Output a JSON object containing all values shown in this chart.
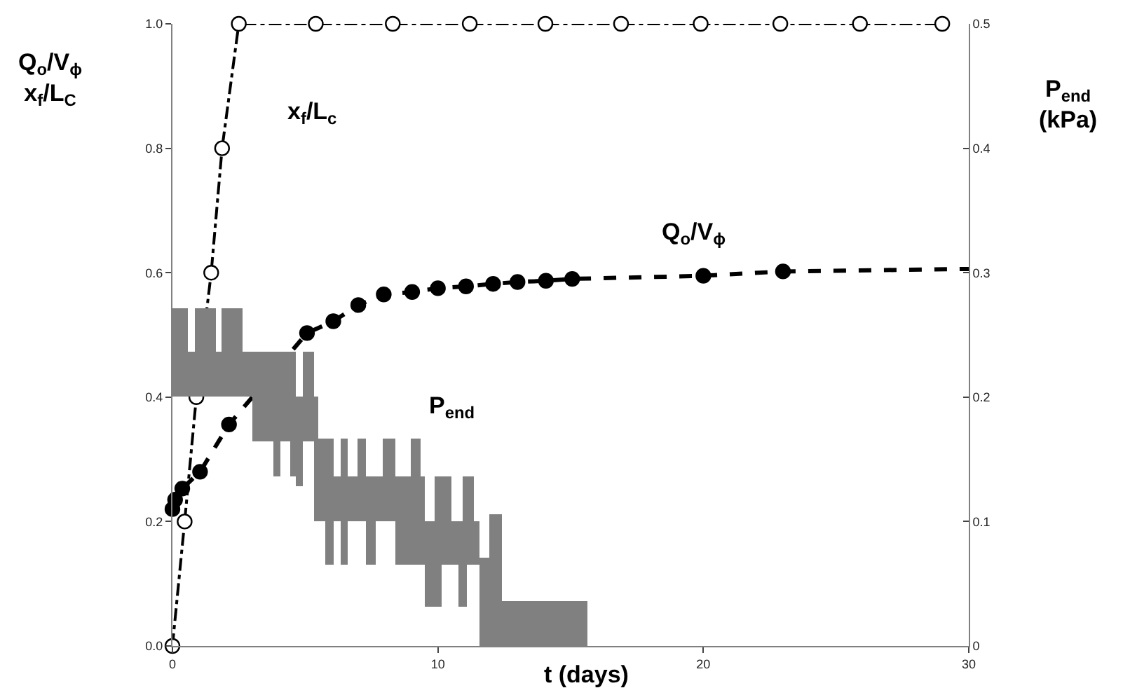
{
  "chart_data": {
    "type": "line",
    "xlabel": "t (days)",
    "ylabel": "Q$_{o}$/V$_{ϕ}$\nx$_{f}$/L$_{C}$",
    "y2label": "P$_{end}$\n(kPa)",
    "xlim": [
      0,
      30
    ],
    "xticks": [
      0,
      10,
      20,
      30
    ],
    "ylim": [
      0,
      1
    ],
    "yticks": [
      {
        "value": 0,
        "label": "0.0"
      },
      {
        "value": 0.2,
        "label": "0.2"
      },
      {
        "value": 0.4,
        "label": "0.4"
      },
      {
        "value": 0.6,
        "label": "0.6"
      },
      {
        "value": 0.8,
        "label": "0.8"
      },
      {
        "value": 1,
        "label": "1.0"
      }
    ],
    "y2lim": [
      0,
      0.5
    ],
    "y2ticks": [
      0,
      0.1,
      0.2,
      0.3,
      0.4,
      0.5
    ],
    "annotations": [
      "x$_{f}$/L$_{c}$",
      "Q$_{o}$/V$_{ϕ}$",
      "P$_{end}$"
    ],
    "series": [
      {
        "type": "histogram",
        "axis": "y2",
        "color": "#808080",
        "bins": [
          0,
          0.58,
          0.83,
          1.62,
          1.85,
          2.63,
          3.0,
          3.79,
          4.06,
          4.41,
          4.64,
          4.9,
          5.33,
          5.47,
          5.78,
          6.08,
          6.35,
          6.61,
          6.97,
          7.28,
          7.64,
          7.94,
          8.38,
          8.99,
          9.35,
          9.52,
          9.88,
          10.14,
          10.49,
          10.76,
          10.93,
          11.11,
          11.34,
          11.55,
          11.96,
          12.43,
          15.61
        ],
        "base": [
          0.2,
          0.2,
          0.2,
          0.2,
          0.2,
          0.2,
          0.164,
          0.136,
          0.164,
          0.136,
          0.128,
          0.164,
          0.1,
          0.1,
          0.065,
          0.1,
          0.065,
          0.1,
          0.1,
          0.065,
          0.1,
          0.1,
          0.065,
          0.065,
          0.065,
          0.032,
          0.032,
          0.065,
          0.065,
          0.032,
          0.032,
          0.065,
          0.065,
          0,
          0,
          0
        ],
        "values": [
          0.071,
          0.037,
          0.071,
          0.037,
          0.071,
          0.037,
          0.073,
          0.101,
          0.073,
          0.101,
          0.072,
          0.073,
          0.1,
          0.067,
          0.102,
          0.036,
          0.102,
          0.036,
          0.067,
          0.071,
          0.036,
          0.067,
          0.071,
          0.102,
          0.071,
          0.068,
          0.104,
          0.071,
          0.035,
          0.068,
          0.104,
          0.071,
          0.035,
          0.071,
          0.106,
          0.036
        ]
      },
      {
        "color": "#000000",
        "marker": "circle-open",
        "line_style": "dashdot",
        "x": [
          0,
          0.46,
          0.9,
          1.46,
          1.87,
          2.5,
          5.4,
          8.3,
          11.2,
          14.05,
          16.9,
          19.9,
          22.9,
          25.9,
          29.0
        ],
        "values": [
          0,
          0.2,
          0.4,
          0.6,
          0.8,
          1,
          1,
          1,
          1,
          1,
          1,
          1,
          1,
          1,
          1
        ]
      },
      {
        "color": "#000000",
        "marker": "circle",
        "line_style": "dashed",
        "x": [
          0,
          0.1,
          0.37,
          1.04,
          2.13,
          5.07,
          6.06,
          7.0,
          7.96,
          9.03,
          10.0,
          11.06,
          12.08,
          13.0,
          14.07,
          15.06,
          20.0,
          23.0
        ],
        "values": [
          0.22,
          0.235,
          0.253,
          0.28,
          0.356,
          0.503,
          0.522,
          0.548,
          0.565,
          0.569,
          0.575,
          0.578,
          0.582,
          0.585,
          0.587,
          0.59,
          0.595,
          0.602
        ]
      },
      {
        "color": "#000000",
        "marker": "none",
        "line_style": "dashed",
        "x": [
          23.0,
          30.0
        ],
        "values": [
          0.602,
          0.606
        ]
      }
    ]
  }
}
